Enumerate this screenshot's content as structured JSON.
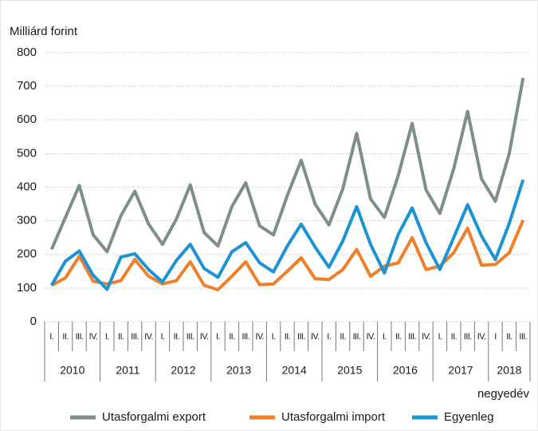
{
  "chart_data": {
    "type": "line",
    "y_label": "Milliárd forint",
    "x_label": "negyedév",
    "categories": [
      "I.",
      "II.",
      "III.",
      "IV.",
      "I.",
      "II.",
      "III.",
      "IV.",
      "I.",
      "II.",
      "III.",
      "IV.",
      "I.",
      "II.",
      "III.",
      "IV.",
      "I.",
      "II.",
      "III.",
      "IV.",
      "I.",
      "II.",
      "III.",
      "IV.",
      "I.",
      "II.",
      "III.",
      "IV.",
      "I.",
      "II.",
      "III.",
      "IV.",
      "I",
      "II.",
      "III."
    ],
    "groups": [
      "2010",
      "2011",
      "2012",
      "2013",
      "2014",
      "2015",
      "2016",
      "2017",
      "2018"
    ],
    "series": [
      {
        "name": "Utasforgalmi export",
        "color": "#7d8f86",
        "values": [
          215,
          310,
          405,
          258,
          208,
          315,
          388,
          290,
          230,
          305,
          407,
          265,
          225,
          342,
          413,
          285,
          258,
          375,
          480,
          350,
          288,
          395,
          560,
          365,
          310,
          435,
          590,
          392,
          322,
          455,
          625,
          425,
          358,
          500,
          725
        ]
      },
      {
        "name": "Utasforgalmi import",
        "color": "#f07f2a",
        "values": [
          108,
          130,
          195,
          120,
          112,
          122,
          185,
          135,
          112,
          122,
          178,
          108,
          95,
          135,
          178,
          110,
          112,
          150,
          190,
          128,
          125,
          155,
          215,
          135,
          165,
          175,
          250,
          155,
          165,
          205,
          278,
          168,
          170,
          205,
          302
        ]
      },
      {
        "name": "Egyenleg",
        "color": "#1c93d2",
        "values": [
          108,
          180,
          210,
          138,
          96,
          192,
          202,
          155,
          118,
          182,
          230,
          158,
          132,
          208,
          235,
          175,
          148,
          225,
          290,
          222,
          162,
          240,
          342,
          230,
          145,
          260,
          338,
          235,
          155,
          250,
          348,
          255,
          185,
          292,
          422
        ]
      }
    ],
    "ylim": [
      0,
      800
    ],
    "yticks": [
      0,
      100,
      200,
      300,
      400,
      500,
      600,
      700,
      800
    ],
    "grid": true,
    "legend": "bottom"
  }
}
